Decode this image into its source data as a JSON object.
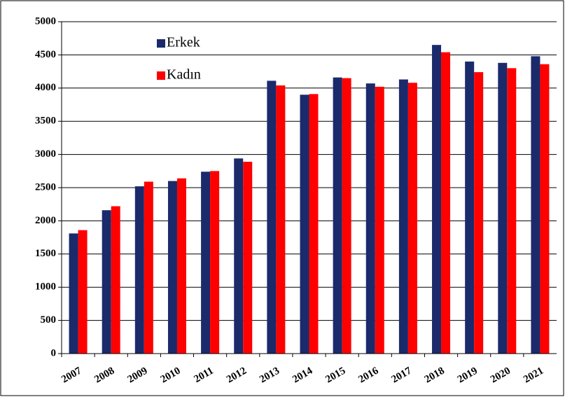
{
  "chart_data": {
    "type": "bar",
    "categories": [
      "2007",
      "2008",
      "2009",
      "2010",
      "2011",
      "2012",
      "2013",
      "2014",
      "2015",
      "2016",
      "2017",
      "2018",
      "2019",
      "2020",
      "2021"
    ],
    "series": [
      {
        "name": "Erkek",
        "color": "#1b2a6b",
        "values": [
          1810,
          2160,
          2520,
          2600,
          2740,
          2940,
          4110,
          3900,
          4160,
          4070,
          4130,
          4650,
          4400,
          4380,
          4480
        ]
      },
      {
        "name": "Kadın",
        "color": "#ff0000",
        "values": [
          1860,
          2220,
          2590,
          2640,
          2750,
          2890,
          4040,
          3910,
          4150,
          4020,
          4080,
          4540,
          4240,
          4300,
          4360
        ]
      }
    ],
    "ylim": [
      0,
      5000
    ],
    "yticks": [
      0,
      500,
      1000,
      1500,
      2000,
      2500,
      3000,
      3500,
      4000,
      4500,
      5000
    ],
    "grid": true
  }
}
